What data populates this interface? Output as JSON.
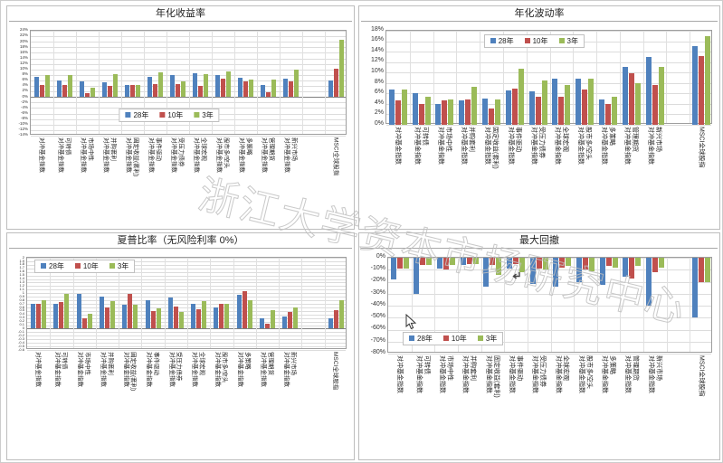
{
  "watermark": {
    "text": "浙江大学资本市场研究中心"
  },
  "legend": {
    "items": [
      {
        "label": "28年",
        "color": "#4F81BD"
      },
      {
        "label": "10年",
        "color": "#C0504D"
      },
      {
        "label": "3年",
        "color": "#9BBB59"
      }
    ]
  },
  "categories": [
    [
      "对冲基金指数"
    ],
    [
      "可转债",
      "对冲基金指数"
    ],
    [
      "市场中性",
      "对冲基金指数"
    ],
    [
      "并购套利",
      "对冲基金指数"
    ],
    [
      "固定收益(套利)",
      "对冲基金指数"
    ],
    [
      "事件驱动",
      "对冲基金指数"
    ],
    [
      "受压力债券",
      "对冲基金指数"
    ],
    [
      "全球宏观",
      "对冲基金指数"
    ],
    [
      "股市多/空头",
      "对冲基金指数"
    ],
    [
      "多策略",
      "对冲基金指数"
    ],
    [
      "管理期货",
      "对冲基金指数"
    ],
    [
      "新兴市场",
      "对冲基金指数"
    ],
    [
      ""
    ],
    [
      "MSCI全球股指"
    ]
  ],
  "chart_data": [
    {
      "type": "bar",
      "title": "年化收益率",
      "ylim": [
        -14,
        24
      ],
      "y_ticks": [
        "24%",
        "22%",
        "20%",
        "18%",
        "16%",
        "14%",
        "12%",
        "10%",
        "8%",
        "6%",
        "4%",
        "2%",
        "0%",
        "-2%",
        "-4%",
        "-6%",
        "-8%",
        "-10%",
        "-12%",
        "-14%"
      ],
      "legend_position": "bottom-center",
      "series": [
        {
          "name": "28年",
          "color": "#4F81BD",
          "values": [
            7.2,
            5.9,
            5.7,
            5.3,
            4.5,
            7.2,
            7.8,
            8.7,
            7.8,
            6.9,
            4.3,
            6.6,
            null,
            5.9
          ]
        },
        {
          "name": "10年",
          "color": "#C0504D",
          "values": [
            4.3,
            4.3,
            1.4,
            3.9,
            4.3,
            4.8,
            4.8,
            3.9,
            6.5,
            5.7,
            1.7,
            5.7,
            null,
            10.2
          ]
        },
        {
          "name": "3年",
          "color": "#9BBB59",
          "values": [
            8.0,
            8.0,
            3.2,
            8.2,
            4.5,
            9.0,
            5.5,
            8.2,
            9.1,
            6.2,
            6.4,
            9.9,
            null,
            20.7
          ]
        }
      ]
    },
    {
      "type": "bar",
      "title": "年化波动率",
      "ylim": [
        0,
        18
      ],
      "y_ticks": [
        "18%",
        "16%",
        "14%",
        "12%",
        "10%",
        "8%",
        "6%",
        "4%",
        "2%",
        "0%"
      ],
      "legend_position": "top-center",
      "series": [
        {
          "name": "28年",
          "color": "#4F81BD",
          "values": [
            6.8,
            6.1,
            4.0,
            4.6,
            5.0,
            6.5,
            6.4,
            8.8,
            8.9,
            4.9,
            11.1,
            13.0,
            null,
            15.0
          ]
        },
        {
          "name": "10年",
          "color": "#C0504D",
          "values": [
            4.7,
            4.0,
            4.7,
            4.9,
            3.1,
            7.0,
            5.4,
            5.3,
            6.7,
            4.0,
            9.8,
            7.7,
            null,
            13.2
          ]
        },
        {
          "name": "3年",
          "color": "#9BBB59",
          "values": [
            6.8,
            5.4,
            4.9,
            7.3,
            4.9,
            10.7,
            8.5,
            7.6,
            8.9,
            5.3,
            8.0,
            11.1,
            null,
            17.0
          ]
        }
      ]
    },
    {
      "type": "bar",
      "title": "夏普比率（无风险利率 0%）",
      "ylim": [
        -0.6,
        2.0
      ],
      "y_ticks": [
        "2",
        "1.9",
        "1.8",
        "1.7",
        "1.6",
        "1.5",
        "1.4",
        "1.3",
        "1.2",
        "1.1",
        "1",
        "0.9",
        "0.8",
        "0.7",
        "0.6",
        "0.5",
        "0.4",
        "0.3",
        "0.2",
        "0.1",
        "0",
        "-0.1",
        "-0.2",
        "-0.3",
        "-0.4",
        "-0.5",
        "-0.6"
      ],
      "legend_position": "top-left",
      "series": [
        {
          "name": "28年",
          "color": "#4F81BD",
          "values": [
            0.71,
            0.71,
            0.98,
            0.9,
            0.67,
            0.8,
            0.88,
            0.71,
            0.61,
            0.95,
            0.28,
            0.34,
            null,
            0.28
          ]
        },
        {
          "name": "10年",
          "color": "#C0504D",
          "values": [
            0.71,
            0.76,
            0.28,
            0.61,
            0.99,
            0.5,
            0.63,
            0.55,
            0.69,
            1.05,
            0.14,
            0.48,
            null,
            0.52
          ]
        },
        {
          "name": "3年",
          "color": "#9BBB59",
          "values": [
            0.8,
            0.98,
            0.42,
            0.77,
            0.67,
            0.57,
            0.46,
            0.77,
            0.71,
            0.8,
            0.53,
            0.59,
            null,
            0.8
          ]
        }
      ]
    },
    {
      "type": "bar",
      "title": "最大回撤",
      "ylim": [
        -80,
        0
      ],
      "y_ticks": [
        "0%",
        "-10%",
        "-20%",
        "-30%",
        "-40%",
        "-50%",
        "-60%",
        "-70%",
        "-80%"
      ],
      "legend_position": "bottom-left",
      "series": [
        {
          "name": "28年",
          "color": "#4F81BD",
          "values": [
            -18,
            -30,
            -9,
            -6,
            -24,
            -9,
            -22,
            -24,
            -20,
            -23,
            -16,
            -40,
            null,
            -50
          ]
        },
        {
          "name": "10年",
          "color": "#C0504D",
          "values": [
            -9,
            -6,
            -10,
            -5,
            -6,
            -5,
            -9,
            -8,
            -10,
            -7,
            -17,
            -12,
            null,
            -20
          ]
        },
        {
          "name": "3年",
          "color": "#9BBB59",
          "values": [
            -9,
            -6,
            -6,
            -5,
            -14,
            -12,
            -10,
            -7,
            -11,
            -8,
            -7,
            -8,
            null,
            -20
          ]
        }
      ]
    }
  ]
}
